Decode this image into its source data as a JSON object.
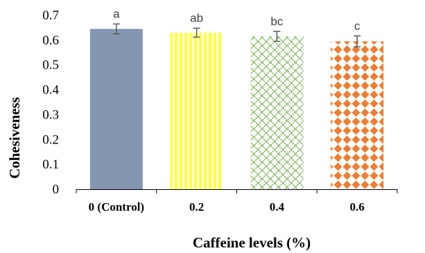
{
  "chart_data": {
    "type": "bar",
    "categories": [
      "0 (Control)",
      "0.2",
      "0.4",
      "0.6"
    ],
    "values": [
      0.645,
      0.63,
      0.615,
      0.595
    ],
    "error": [
      0.02,
      0.018,
      0.02,
      0.022
    ],
    "significance": [
      "a",
      "ab",
      "bc",
      "c"
    ],
    "xlabel": "Caffeine levels (%)",
    "ylabel": "Cohesiveness",
    "ylim": [
      0,
      0.7
    ],
    "yticks": [
      "0",
      "0.1",
      "0.2",
      "0.3",
      "0.4",
      "0.5",
      "0.6",
      "0.7"
    ],
    "grid": false,
    "colors": [
      "#8496b0",
      "#ffff33",
      "#70ad47",
      "#ed7d31"
    ]
  }
}
